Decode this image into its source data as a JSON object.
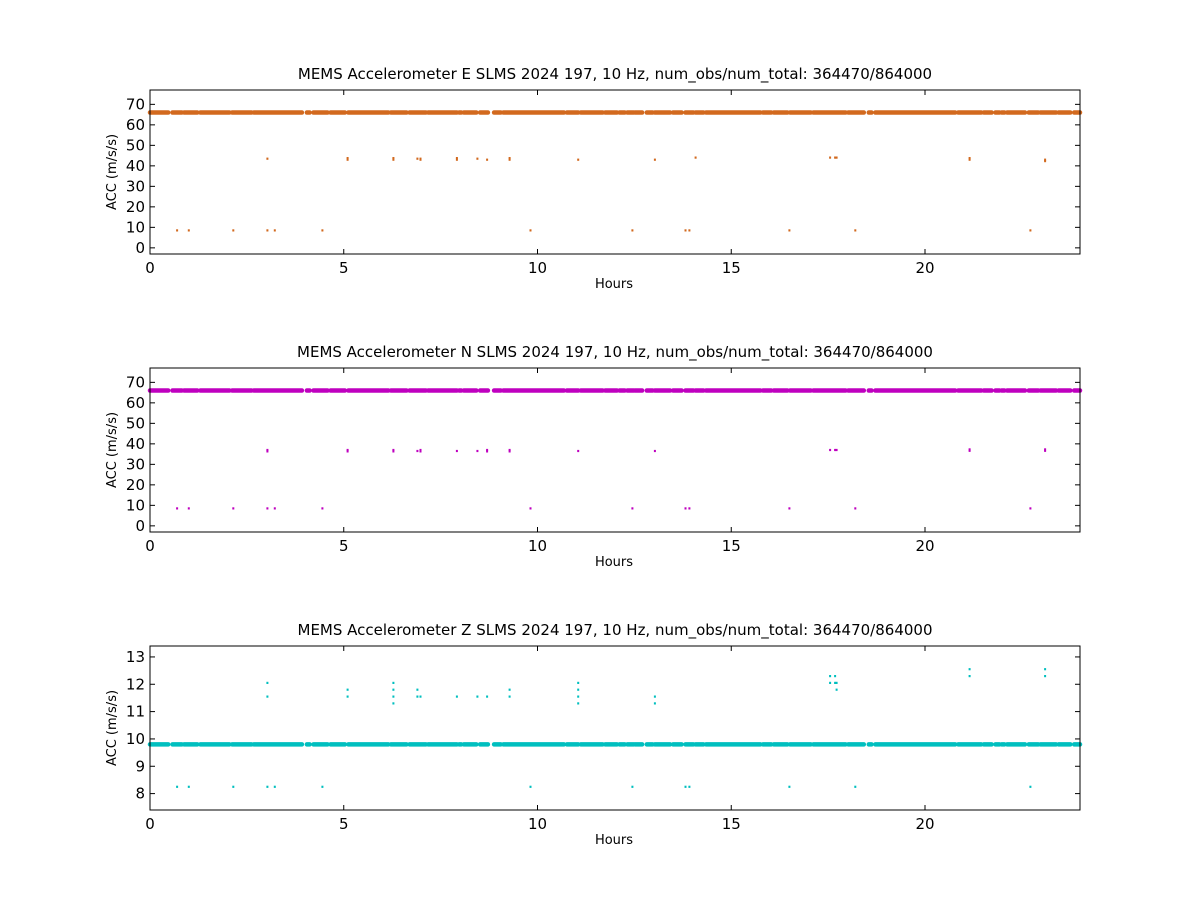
{
  "chart_data": [
    {
      "type": "scatter",
      "title": "MEMS Accelerometer E SLMS 2024 197, 10 Hz, num_obs/num_total: 364470/864000",
      "xlabel": "Hours",
      "ylabel": "ACC (m/s/s)",
      "xlim": [
        0,
        24
      ],
      "ylim": [
        -3,
        77
      ],
      "xticks": [
        0,
        5,
        10,
        15,
        20
      ],
      "yticks": [
        0,
        10,
        20,
        30,
        40,
        50,
        60,
        70
      ],
      "grid": false,
      "legend": "none",
      "color": "#d2691e",
      "series": [
        {
          "baseline": 66,
          "segments": [
            [
              0.0,
              0.47
            ],
            [
              0.58,
              0.82
            ],
            [
              0.88,
              1.22
            ],
            [
              1.3,
              2.05
            ],
            [
              2.12,
              2.62
            ],
            [
              2.68,
              3.92
            ],
            [
              4.05,
              4.12
            ],
            [
              4.22,
              4.58
            ],
            [
              4.66,
              5.03
            ],
            [
              5.12,
              6.15
            ],
            [
              6.22,
              6.62
            ],
            [
              6.7,
              7.12
            ],
            [
              7.18,
              7.92
            ],
            [
              7.98,
              8.03
            ],
            [
              8.1,
              8.42
            ],
            [
              8.52,
              8.72
            ],
            [
              8.88,
              9.05
            ],
            [
              9.12,
              10.68
            ],
            [
              10.76,
              11.05
            ],
            [
              11.12,
              11.68
            ],
            [
              11.75,
              12.05
            ],
            [
              12.12,
              12.25
            ],
            [
              12.32,
              12.48
            ],
            [
              12.52,
              12.7
            ],
            [
              12.82,
              12.97
            ],
            [
              13.03,
              13.42
            ],
            [
              13.5,
              13.72
            ],
            [
              13.82,
              14.02
            ],
            [
              14.08,
              14.28
            ],
            [
              14.35,
              15.75
            ],
            [
              15.82,
              16.03
            ],
            [
              16.1,
              16.45
            ],
            [
              16.52,
              17.05
            ],
            [
              17.12,
              17.95
            ],
            [
              18.02,
              18.42
            ],
            [
              18.55,
              18.62
            ],
            [
              18.72,
              20.78
            ],
            [
              20.86,
              21.45
            ],
            [
              21.52,
              21.72
            ],
            [
              21.82,
              21.92
            ],
            [
              21.98,
              22.05
            ],
            [
              22.12,
              22.58
            ],
            [
              22.68,
              22.92
            ],
            [
              22.98,
              23.38
            ],
            [
              23.45,
              23.75
            ],
            [
              23.85,
              24.0
            ]
          ],
          "points": [
            [
              3.03,
              43.5
            ],
            [
              5.1,
              43.8
            ],
            [
              5.1,
              43
            ],
            [
              6.28,
              43.8
            ],
            [
              6.28,
              43
            ],
            [
              6.9,
              43.5
            ],
            [
              6.98,
              43.5
            ],
            [
              6.98,
              43
            ],
            [
              7.92,
              43.8
            ],
            [
              7.92,
              43
            ],
            [
              8.45,
              43.5
            ],
            [
              8.7,
              43
            ],
            [
              9.28,
              43.8
            ],
            [
              9.28,
              43
            ],
            [
              11.05,
              43
            ],
            [
              13.03,
              43
            ],
            [
              14.08,
              44
            ],
            [
              17.55,
              44
            ],
            [
              17.68,
              44
            ],
            [
              17.72,
              44
            ],
            [
              21.15,
              43.8
            ],
            [
              21.15,
              43
            ],
            [
              23.1,
              43
            ],
            [
              23.1,
              42.3
            ],
            [
              0.7,
              8.5
            ],
            [
              1.0,
              8.5
            ],
            [
              2.15,
              8.5
            ],
            [
              3.03,
              8.5
            ],
            [
              3.22,
              8.5
            ],
            [
              4.45,
              8.5
            ],
            [
              9.82,
              8.5
            ],
            [
              12.45,
              8.5
            ],
            [
              13.82,
              8.5
            ],
            [
              13.92,
              8.5
            ],
            [
              16.5,
              8.5
            ],
            [
              18.2,
              8.5
            ],
            [
              22.72,
              8.5
            ]
          ]
        }
      ]
    },
    {
      "type": "scatter",
      "title": "MEMS Accelerometer N SLMS 2024 197, 10 Hz, num_obs/num_total: 364470/864000",
      "xlabel": "Hours",
      "ylabel": "ACC (m/s/s)",
      "xlim": [
        0,
        24
      ],
      "ylim": [
        -3,
        77
      ],
      "xticks": [
        0,
        5,
        10,
        15,
        20
      ],
      "yticks": [
        0,
        10,
        20,
        30,
        40,
        50,
        60,
        70
      ],
      "grid": false,
      "legend": "none",
      "color": "#bf00bf",
      "series": [
        {
          "baseline": 66,
          "segments": [
            [
              0.0,
              0.47
            ],
            [
              0.58,
              0.82
            ],
            [
              0.88,
              1.22
            ],
            [
              1.3,
              2.05
            ],
            [
              2.12,
              2.62
            ],
            [
              2.68,
              3.92
            ],
            [
              4.05,
              4.12
            ],
            [
              4.22,
              4.58
            ],
            [
              4.66,
              5.03
            ],
            [
              5.12,
              6.15
            ],
            [
              6.22,
              6.62
            ],
            [
              6.7,
              7.12
            ],
            [
              7.18,
              7.92
            ],
            [
              7.98,
              8.03
            ],
            [
              8.1,
              8.42
            ],
            [
              8.52,
              8.72
            ],
            [
              8.88,
              9.05
            ],
            [
              9.12,
              10.68
            ],
            [
              10.76,
              11.05
            ],
            [
              11.12,
              11.68
            ],
            [
              11.75,
              12.05
            ],
            [
              12.12,
              12.25
            ],
            [
              12.32,
              12.48
            ],
            [
              12.52,
              12.7
            ],
            [
              12.82,
              12.97
            ],
            [
              13.03,
              13.42
            ],
            [
              13.5,
              13.72
            ],
            [
              13.82,
              14.02
            ],
            [
              14.08,
              14.28
            ],
            [
              14.35,
              15.75
            ],
            [
              15.82,
              16.03
            ],
            [
              16.1,
              16.45
            ],
            [
              16.52,
              17.05
            ],
            [
              17.12,
              17.95
            ],
            [
              18.02,
              18.42
            ],
            [
              18.55,
              18.62
            ],
            [
              18.72,
              20.78
            ],
            [
              20.86,
              21.45
            ],
            [
              21.52,
              21.72
            ],
            [
              21.82,
              21.92
            ],
            [
              21.98,
              22.05
            ],
            [
              22.12,
              22.58
            ],
            [
              22.68,
              22.92
            ],
            [
              22.98,
              23.38
            ],
            [
              23.45,
              23.75
            ],
            [
              23.85,
              24.0
            ]
          ],
          "points": [
            [
              3.03,
              37
            ],
            [
              3.03,
              36.3
            ],
            [
              5.1,
              37
            ],
            [
              5.1,
              36.3
            ],
            [
              6.28,
              37
            ],
            [
              6.28,
              36.3
            ],
            [
              6.9,
              36.5
            ],
            [
              6.98,
              37
            ],
            [
              6.98,
              36.3
            ],
            [
              7.92,
              36.5
            ],
            [
              8.45,
              36.5
            ],
            [
              8.7,
              37
            ],
            [
              8.7,
              36.3
            ],
            [
              9.28,
              37
            ],
            [
              9.28,
              36.3
            ],
            [
              11.05,
              36.5
            ],
            [
              13.03,
              36.5
            ],
            [
              17.55,
              37
            ],
            [
              17.68,
              37
            ],
            [
              17.72,
              37
            ],
            [
              21.15,
              37.3
            ],
            [
              21.15,
              36.6
            ],
            [
              23.1,
              37.3
            ],
            [
              23.1,
              36.6
            ],
            [
              0.7,
              8.5
            ],
            [
              1.0,
              8.5
            ],
            [
              2.15,
              8.5
            ],
            [
              3.03,
              8.5
            ],
            [
              3.22,
              8.5
            ],
            [
              4.45,
              8.5
            ],
            [
              9.82,
              8.5
            ],
            [
              12.45,
              8.5
            ],
            [
              13.82,
              8.5
            ],
            [
              13.92,
              8.5
            ],
            [
              16.5,
              8.5
            ],
            [
              18.2,
              8.5
            ],
            [
              22.72,
              8.5
            ]
          ]
        }
      ]
    },
    {
      "type": "scatter",
      "title": "MEMS Accelerometer Z SLMS 2024 197, 10 Hz, num_obs/num_total: 364470/864000",
      "xlabel": "Hours",
      "ylabel": "ACC (m/s/s)",
      "xlim": [
        0,
        24
      ],
      "ylim": [
        7.4,
        13.4
      ],
      "xticks": [
        0,
        5,
        10,
        15,
        20
      ],
      "yticks": [
        8,
        9,
        10,
        11,
        12,
        13
      ],
      "grid": false,
      "legend": "none",
      "color": "#00bfbf",
      "series": [
        {
          "baseline": 9.8,
          "segments": [
            [
              0.0,
              0.47
            ],
            [
              0.58,
              0.82
            ],
            [
              0.88,
              1.22
            ],
            [
              1.3,
              2.05
            ],
            [
              2.12,
              2.62
            ],
            [
              2.68,
              3.92
            ],
            [
              4.05,
              4.12
            ],
            [
              4.22,
              4.58
            ],
            [
              4.66,
              5.03
            ],
            [
              5.12,
              6.15
            ],
            [
              6.22,
              6.62
            ],
            [
              6.7,
              7.12
            ],
            [
              7.18,
              7.92
            ],
            [
              7.98,
              8.03
            ],
            [
              8.1,
              8.42
            ],
            [
              8.52,
              8.72
            ],
            [
              8.88,
              9.05
            ],
            [
              9.12,
              10.68
            ],
            [
              10.76,
              11.05
            ],
            [
              11.12,
              11.68
            ],
            [
              11.75,
              12.05
            ],
            [
              12.12,
              12.25
            ],
            [
              12.32,
              12.48
            ],
            [
              12.52,
              12.7
            ],
            [
              12.82,
              12.97
            ],
            [
              13.03,
              13.42
            ],
            [
              13.5,
              13.72
            ],
            [
              13.82,
              14.02
            ],
            [
              14.08,
              14.28
            ],
            [
              14.35,
              15.75
            ],
            [
              15.82,
              16.03
            ],
            [
              16.1,
              16.45
            ],
            [
              16.52,
              17.05
            ],
            [
              17.12,
              17.95
            ],
            [
              18.02,
              18.42
            ],
            [
              18.55,
              18.62
            ],
            [
              18.72,
              20.78
            ],
            [
              20.86,
              21.45
            ],
            [
              21.52,
              21.72
            ],
            [
              21.82,
              21.92
            ],
            [
              21.98,
              22.05
            ],
            [
              22.12,
              22.58
            ],
            [
              22.68,
              22.92
            ],
            [
              22.98,
              23.38
            ],
            [
              23.45,
              23.75
            ],
            [
              23.85,
              24.0
            ]
          ],
          "points": [
            [
              3.03,
              12.05
            ],
            [
              3.03,
              11.55
            ],
            [
              5.1,
              11.8
            ],
            [
              5.1,
              11.55
            ],
            [
              6.28,
              12.05
            ],
            [
              6.28,
              11.8
            ],
            [
              6.28,
              11.55
            ],
            [
              6.28,
              11.3
            ],
            [
              6.9,
              11.8
            ],
            [
              6.9,
              11.55
            ],
            [
              6.98,
              11.55
            ],
            [
              7.92,
              11.55
            ],
            [
              8.45,
              11.55
            ],
            [
              8.7,
              11.55
            ],
            [
              9.28,
              11.8
            ],
            [
              9.28,
              11.55
            ],
            [
              11.05,
              12.05
            ],
            [
              11.05,
              11.8
            ],
            [
              11.05,
              11.55
            ],
            [
              11.05,
              11.3
            ],
            [
              13.03,
              11.55
            ],
            [
              13.03,
              11.3
            ],
            [
              17.55,
              12.3
            ],
            [
              17.55,
              12.05
            ],
            [
              17.68,
              12.3
            ],
            [
              17.68,
              12.05
            ],
            [
              17.72,
              12.05
            ],
            [
              17.72,
              11.8
            ],
            [
              21.15,
              12.55
            ],
            [
              21.15,
              12.3
            ],
            [
              23.1,
              12.55
            ],
            [
              23.1,
              12.3
            ],
            [
              0.7,
              8.25
            ],
            [
              1.0,
              8.25
            ],
            [
              2.15,
              8.25
            ],
            [
              3.03,
              8.25
            ],
            [
              3.22,
              8.25
            ],
            [
              4.45,
              8.25
            ],
            [
              9.82,
              8.25
            ],
            [
              12.45,
              8.25
            ],
            [
              13.82,
              8.25
            ],
            [
              13.92,
              8.25
            ],
            [
              16.5,
              8.25
            ],
            [
              18.2,
              8.25
            ],
            [
              22.72,
              8.25
            ]
          ]
        }
      ]
    }
  ]
}
